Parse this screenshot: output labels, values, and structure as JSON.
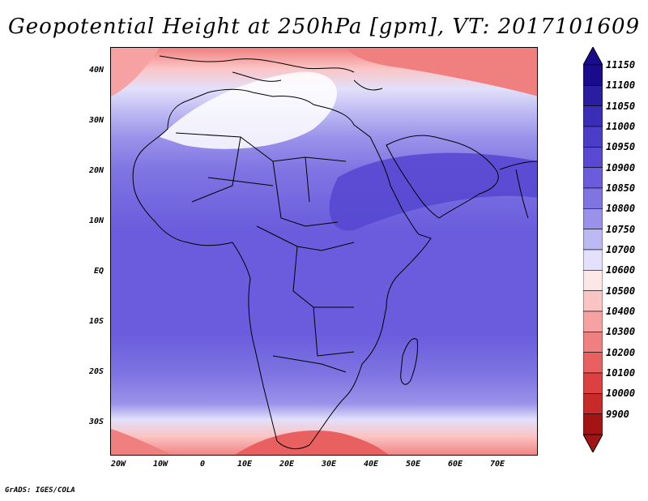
{
  "title": "Geopotential Height at 250hPa [gpm], VT: 2017101609",
  "credit": "GrADS: IGES/COLA",
  "map": {
    "projection": "lat-lon",
    "lon_range": [
      -22,
      80
    ],
    "lat_range": [
      -37,
      45
    ],
    "lat_ticks": [
      "40N",
      "30N",
      "20N",
      "10N",
      "EQ",
      "10S",
      "20S",
      "30S"
    ],
    "lon_ticks": [
      "20W",
      "10W",
      "0",
      "10E",
      "20E",
      "30E",
      "40E",
      "50E",
      "60E",
      "70E"
    ]
  },
  "colorbar": {
    "levels": [
      "11150",
      "11100",
      "11050",
      "11000",
      "10950",
      "10900",
      "10850",
      "10800",
      "10750",
      "10700",
      "10600",
      "10500",
      "10400",
      "10300",
      "10200",
      "10100",
      "10000",
      "9900"
    ],
    "colors": [
      "#1a0a8c",
      "#2a1ea0",
      "#3a2eb6",
      "#4a3ec8",
      "#5848d2",
      "#6a5cdc",
      "#7f74e2",
      "#9a92ea",
      "#bcb8f2",
      "#e2e0fa",
      "#fde6e6",
      "#fbc4c4",
      "#f6a2a2",
      "#f08080",
      "#e86060",
      "#dc4040",
      "#c82a2a",
      "#a41414"
    ]
  }
}
